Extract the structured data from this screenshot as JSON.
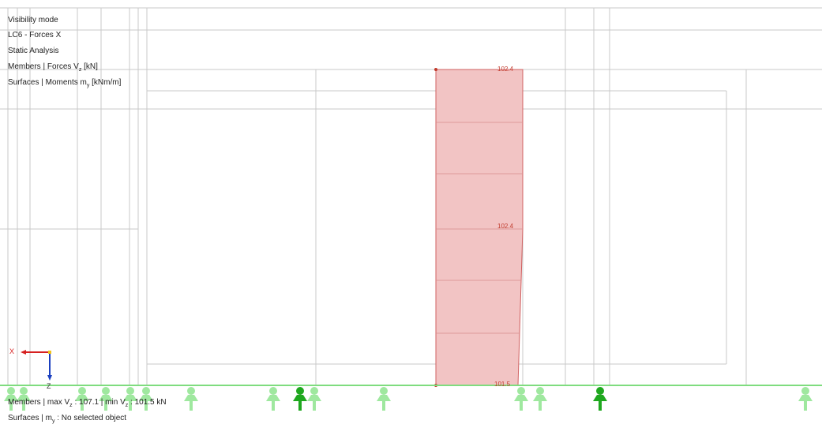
{
  "info_panel": {
    "line1": "Visibility mode",
    "line2": "LC6 - Forces X",
    "line3": "Static Analysis",
    "line4_prefix": "Members | Forces V",
    "line4_sub": "z",
    "line4_suffix": " [kN]",
    "line5_prefix": "Surfaces | Moments m",
    "line5_sub": "y",
    "line5_suffix": " [kNm/m]"
  },
  "diagram": {
    "result_values": [
      "102.4",
      "102.4",
      "101.5"
    ],
    "fill_color": "#f2c4c4",
    "stroke_color": "#d06060"
  },
  "coordinate_system": {
    "x_label": "X",
    "z_label": "Z"
  },
  "status": {
    "members_prefix": "Members | max V",
    "members_sub1": "z",
    "members_mid": " : 107.1 | min V",
    "members_sub2": "z",
    "members_suffix": " : 101.5 kN",
    "surfaces_prefix": "Surfaces | m",
    "surfaces_sub": "y",
    "surfaces_suffix": " : No selected object"
  },
  "colors": {
    "grid_line": "#c9c9c9",
    "support_light": "#9fe89f",
    "support_dark": "#1fa81f",
    "ground_line": "#7fdc7f",
    "axis_x": "#d62020",
    "axis_z": "#1a3fbf"
  }
}
